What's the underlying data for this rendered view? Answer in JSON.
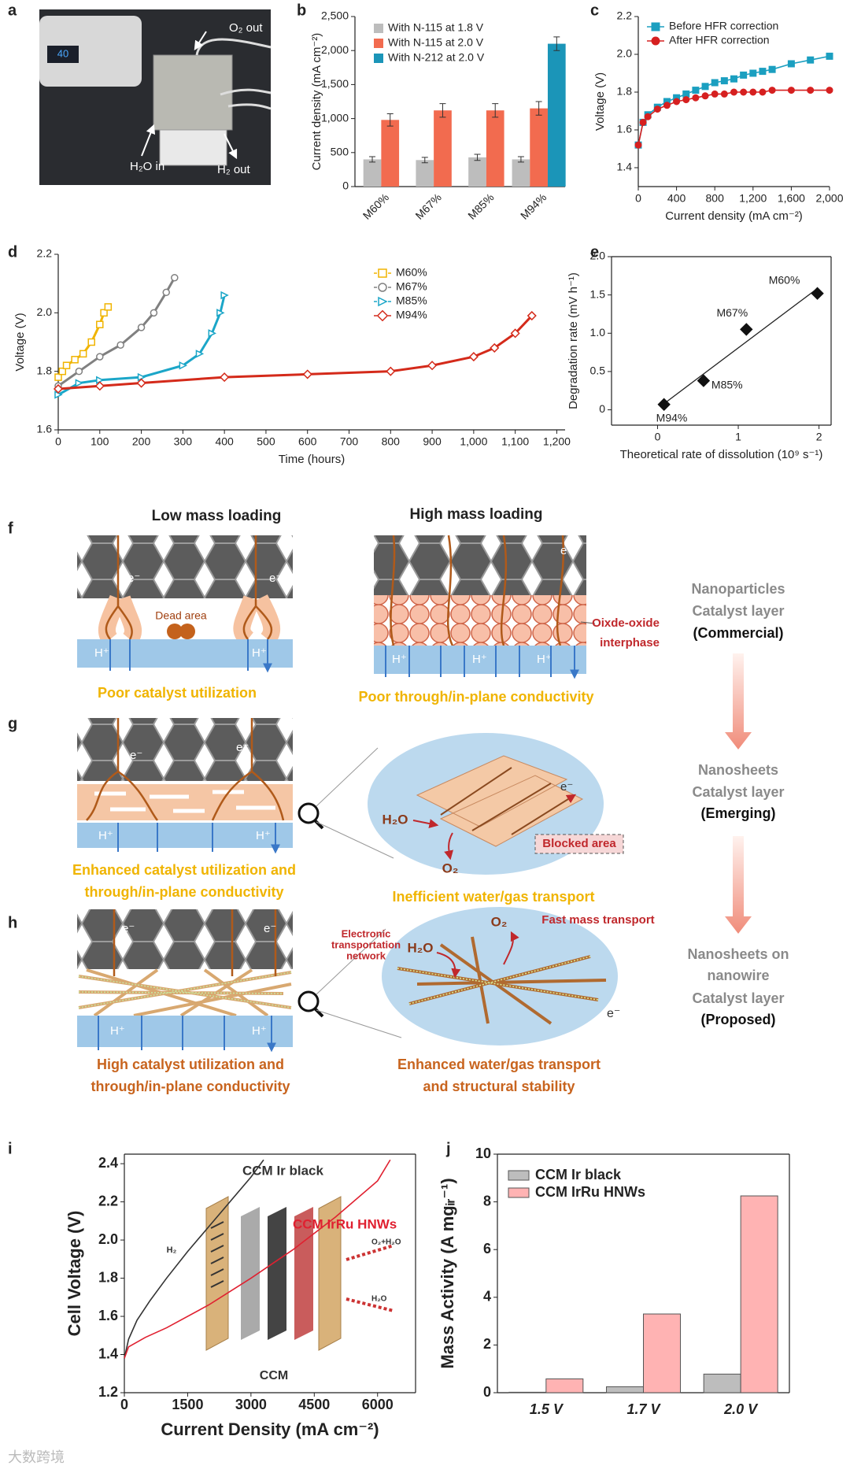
{
  "panel_labels": [
    "a",
    "b",
    "c",
    "d",
    "e",
    "f",
    "g",
    "h",
    "i",
    "j"
  ],
  "photo": {
    "labels": [
      "O₂ out",
      "H₂O in",
      "H₂ out"
    ]
  },
  "chart_data": [
    {
      "type": "bar",
      "categories": [
        "M60%",
        "M67%",
        "M85%",
        "M94%"
      ],
      "series": [
        {
          "name": "With N-115 at 1.8 V",
          "color": "#bdbdbd",
          "values": [
            400,
            390,
            430,
            400
          ],
          "errors": [
            40,
            40,
            45,
            40
          ]
        },
        {
          "name": "With N-115 at 2.0 V",
          "color": "#f26b4f",
          "values": [
            980,
            1120,
            1120,
            1150
          ],
          "errors": [
            90,
            100,
            100,
            100
          ]
        },
        {
          "name": "With N-212 at 2.0 V",
          "color": "#1b95b8",
          "values": [
            null,
            null,
            null,
            2100
          ],
          "errors": [
            null,
            null,
            null,
            100
          ]
        }
      ],
      "ylim": [
        0,
        2500
      ],
      "yticks": [
        0,
        500,
        {
          "value": 1000,
          "label": "1,000"
        },
        {
          "value": 1500,
          "label": "1,500"
        },
        {
          "value": 2000,
          "label": "2,000"
        },
        {
          "value": 2500,
          "label": "2,500"
        }
      ],
      "ylabel": "Current density (mA cm⁻²)",
      "legend": "upper left"
    },
    {
      "type": "line",
      "x": [
        0,
        50,
        100,
        200,
        300,
        400,
        500,
        600,
        700,
        800,
        900,
        1000,
        1100,
        1200,
        1300,
        1400,
        1600,
        1800,
        2000
      ],
      "series": [
        {
          "name": "Before HFR correction",
          "color": "#1b9fc0",
          "marker": "square",
          "values": [
            1.52,
            1.64,
            1.68,
            1.72,
            1.75,
            1.77,
            1.79,
            1.81,
            1.83,
            1.85,
            1.86,
            1.87,
            1.89,
            1.9,
            1.91,
            1.92,
            1.95,
            1.97,
            1.99
          ]
        },
        {
          "name": "After HFR correction",
          "color": "#d62020",
          "marker": "circle",
          "values": [
            1.52,
            1.64,
            1.67,
            1.71,
            1.73,
            1.75,
            1.76,
            1.77,
            1.78,
            1.79,
            1.79,
            1.8,
            1.8,
            1.8,
            1.8,
            1.81,
            1.81,
            1.81,
            1.81
          ]
        }
      ],
      "xlim": [
        0,
        2000
      ],
      "xticks": [
        0,
        400,
        800,
        {
          "value": 1200,
          "label": "1,200"
        },
        {
          "value": 1600,
          "label": "1,600"
        },
        {
          "value": 2000,
          "label": "2,000"
        }
      ],
      "ylim": [
        1.3,
        2.2
      ],
      "yticks": [
        1.4,
        1.6,
        1.8,
        {
          "value": 2,
          "label": "2.0"
        },
        {
          "value": 2.2,
          "label": "2.2"
        }
      ],
      "xlabel": "Current density (mA cm⁻²)",
      "ylabel": "Voltage (V)",
      "legend": "upper left"
    },
    {
      "type": "line",
      "series": [
        {
          "name": "M60%",
          "color": "#f0b400",
          "marker": "square",
          "x": [
            0,
            10,
            20,
            40,
            60,
            80,
            100,
            110,
            120
          ],
          "values": [
            1.78,
            1.8,
            1.82,
            1.84,
            1.86,
            1.9,
            1.96,
            2,
            2.02
          ]
        },
        {
          "name": "M67%",
          "color": "#808080",
          "marker": "circle",
          "x": [
            0,
            50,
            100,
            150,
            200,
            230,
            260,
            280
          ],
          "values": [
            1.75,
            1.8,
            1.85,
            1.89,
            1.95,
            2,
            2.07,
            2.12
          ]
        },
        {
          "name": "M85%",
          "color": "#1ba6c8",
          "marker": "triangle",
          "x": [
            0,
            50,
            100,
            200,
            300,
            340,
            370,
            390,
            400
          ],
          "values": [
            1.72,
            1.76,
            1.77,
            1.78,
            1.82,
            1.86,
            1.93,
            2,
            2.06
          ]
        },
        {
          "name": "M94%",
          "color": "#d42a1a",
          "marker": "diamond",
          "x": [
            0,
            100,
            200,
            400,
            600,
            800,
            900,
            1000,
            1050,
            1100,
            1140
          ],
          "values": [
            1.74,
            1.75,
            1.76,
            1.78,
            1.79,
            1.8,
            1.82,
            1.85,
            1.88,
            1.93,
            1.99
          ]
        }
      ],
      "xlim": [
        0,
        1220
      ],
      "xticks": [
        0,
        100,
        200,
        300,
        400,
        500,
        600,
        700,
        800,
        900,
        {
          "value": 1000,
          "label": "1,000"
        },
        {
          "value": 1100,
          "label": "1,100"
        },
        {
          "value": 1200,
          "label": "1,200"
        }
      ],
      "ylim": [
        1.6,
        2.2
      ],
      "yticks": [
        1.6,
        1.8,
        {
          "value": 2,
          "label": "2.0"
        },
        {
          "value": 2.2,
          "label": "2.2"
        }
      ],
      "xlabel": "Time (hours)",
      "ylabel": "Voltage (V)",
      "legend": "upper right"
    },
    {
      "type": "scatter",
      "x": [
        1.98,
        1.1,
        0.57,
        0.08
      ],
      "values": [
        1.52,
        1.05,
        0.38,
        0.07
      ],
      "labels": [
        "M60%",
        "M67%",
        "M85%",
        "M94%"
      ],
      "color": "#111111",
      "xlim": [
        -0.57,
        2.15
      ],
      "xticks": [
        0,
        1,
        2
      ],
      "ylim": [
        -0.2,
        2.0
      ],
      "yticks": [
        0,
        0.5,
        {
          "value": 1,
          "label": "1.0"
        },
        1.5,
        {
          "value": 2,
          "label": "2.0"
        }
      ],
      "xlabel": "Theoretical rate of dissolution (10⁹ s⁻¹)",
      "ylabel": "Degradation rate (mV h⁻¹)"
    },
    {
      "type": "line",
      "series": [
        {
          "name": "CCM Ir black",
          "color": "#333333",
          "x": [
            0,
            100,
            300,
            600,
            1000,
            1500,
            2000,
            2500,
            3000,
            3300
          ],
          "values": [
            1.38,
            1.48,
            1.58,
            1.68,
            1.8,
            1.94,
            2.07,
            2.2,
            2.33,
            2.42
          ]
        },
        {
          "name": "CCM IrRu HNWs",
          "color": "#e02030",
          "x": [
            0,
            100,
            500,
            1000,
            2000,
            3000,
            4000,
            5000,
            6000,
            6300
          ],
          "values": [
            1.38,
            1.44,
            1.49,
            1.54,
            1.66,
            1.8,
            1.95,
            2.12,
            2.31,
            2.42
          ]
        }
      ],
      "xlim": [
        0,
        6900
      ],
      "xticks": [
        0,
        1500,
        3000,
        4500,
        6000
      ],
      "ylim": [
        1.2,
        2.45
      ],
      "yticks": [
        1.2,
        1.4,
        1.6,
        1.8,
        {
          "value": 2,
          "label": "2.0"
        },
        2.2,
        2.4
      ],
      "xlabel": "Current Density (mA cm⁻²)",
      "ylabel": "Cell Voltage (V)",
      "legend": "inline",
      "inset": {
        "labels": [
          "H₂",
          "O₂+H₂O",
          "H₂O",
          "CCM"
        ]
      }
    },
    {
      "type": "bar",
      "categories": [
        "1.5 V",
        "1.7 V",
        "2.0 V"
      ],
      "series": [
        {
          "name": "CCM Ir black",
          "color": "#bdbdbd",
          "values": [
            0.02,
            0.25,
            0.78
          ]
        },
        {
          "name": "CCM IrRu HNWs",
          "color": "#ffb3b3",
          "values": [
            0.58,
            3.3,
            8.25
          ]
        }
      ],
      "ylim": [
        0,
        10
      ],
      "yticks": [
        0,
        2,
        4,
        6,
        8,
        10
      ],
      "ylabel": "Mass Activity (A mgᵢᵣ⁻¹)",
      "legend": "upper left"
    }
  ],
  "diagram": {
    "columns": [
      "Low mass loading",
      "High mass loading"
    ],
    "symbols": {
      "electron": "e⁻",
      "proton": "H⁺",
      "water": "H₂O",
      "oxygen": "O₂"
    },
    "f": {
      "dead_area": "Dead area",
      "interphase": [
        "Oixde-oxide",
        "interphase"
      ],
      "captions": [
        "Poor catalyst utilization",
        "Poor through/in-plane conductivity"
      ]
    },
    "g": {
      "blocked": "Blocked area",
      "captions": [
        [
          "Enhanced catalyst utilization and",
          "through/in-plane conductivity"
        ],
        "Inefficient water/gas transport"
      ]
    },
    "h": {
      "network": [
        "Electronic",
        "transportation",
        "network"
      ],
      "fast": "Fast mass transport",
      "captions": [
        [
          "High catalyst utilization and",
          "through/in-plane conductivity"
        ],
        [
          "Enhanced water/gas transport",
          "and structural stability"
        ]
      ]
    },
    "stages": [
      {
        "name": [
          "Nanoparticles",
          "Catalyst layer"
        ],
        "kind": "(Commercial)"
      },
      {
        "name": [
          "Nanosheets",
          "Catalyst layer"
        ],
        "kind": "(Emerging)"
      },
      {
        "name": [
          "Nanosheets on",
          "nanowire",
          "Catalyst layer"
        ],
        "kind": "(Proposed)"
      }
    ]
  },
  "watermark": "大数跨境"
}
